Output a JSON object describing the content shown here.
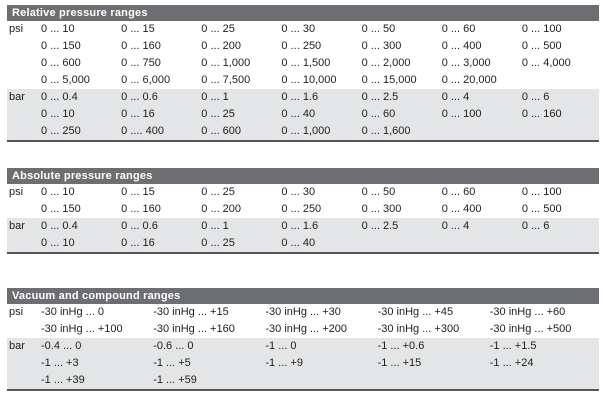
{
  "colors": {
    "header_bg": "#6c6e71",
    "header_text": "#ffffff",
    "shaded_row_bg": "#e4e5e6",
    "text": "#1e1e1e",
    "section_bottom_border": "#55575a"
  },
  "sections": [
    {
      "title": "Relative pressure ranges",
      "column_count": 7,
      "groups": [
        {
          "unit": "psi",
          "shaded": false,
          "rows": [
            [
              "0 ... 10",
              "0 ... 15",
              "0 ... 25",
              "0 ... 30",
              "0 ... 50",
              "0 ... 60",
              "0 ... 100"
            ],
            [
              "0 ... 150",
              "0 ... 160",
              "0 ... 200",
              "0 ... 250",
              "0 ... 300",
              "0 ... 400",
              "0 ... 500"
            ],
            [
              "0 ... 600",
              "0 ... 750",
              "0 ... 1,000",
              "0 ... 1,500",
              "0 ... 2,000",
              "0 ... 3,000",
              "0 ... 4,000"
            ],
            [
              "0 ... 5,000",
              "0 ... 6,000",
              "0 ... 7,500",
              "0 ... 10,000",
              "0 ... 15,000",
              "0 ... 20,000",
              ""
            ]
          ]
        },
        {
          "unit": "bar",
          "shaded": true,
          "rows": [
            [
              "0 ... 0.4",
              "0 ... 0.6",
              "0 ... 1",
              "0 ... 1.6",
              "0 ... 2.5",
              "0 ... 4",
              "0 ... 6"
            ],
            [
              "0 ... 10",
              "0 ... 16",
              "0 ... 25",
              "0 ... 40",
              "0 ... 60",
              "0 ... 100",
              "0 ... 160"
            ],
            [
              "0 ... 250",
              "0 .... 400",
              "0 ... 600",
              "0 ... 1,000",
              "0 ... 1,600",
              "",
              ""
            ]
          ]
        }
      ]
    },
    {
      "title": "Absolute pressure ranges",
      "column_count": 7,
      "groups": [
        {
          "unit": "psi",
          "shaded": false,
          "rows": [
            [
              "0 ... 10",
              "0 ... 15",
              "0 ... 25",
              "0 ... 30",
              "0 ... 50",
              "0 ... 60",
              "0 ... 100"
            ],
            [
              "0 ... 150",
              "0 ... 160",
              "0 ... 200",
              "0 ... 250",
              "0 ... 300",
              "0 ... 400",
              "0 ... 500"
            ]
          ]
        },
        {
          "unit": "bar",
          "shaded": true,
          "rows": [
            [
              "0 ... 0.4",
              "0 ... 0.6",
              "0 ... 1",
              "0 ... 1.6",
              "0 ... 2.5",
              "0 ... 4",
              "0 ... 6"
            ],
            [
              "0 ... 10",
              "0 ... 16",
              "0 ... 25",
              "0 ... 40",
              "",
              "",
              ""
            ]
          ]
        }
      ]
    },
    {
      "title": "Vacuum and compound ranges",
      "column_count": 5,
      "groups": [
        {
          "unit": "psi",
          "shaded": false,
          "rows": [
            [
              "-30 inHg ... 0",
              "-30 inHg ... +15",
              "-30 inHg ... +30",
              "-30 inHg ... +45",
              "-30 inHg ... +60"
            ],
            [
              "-30 inHg ... +100",
              "-30 inHg ... +160",
              "-30 inHg ... +200",
              "-30 inHg ... +300",
              "-30 inHg ... +500"
            ]
          ]
        },
        {
          "unit": "bar",
          "shaded": true,
          "rows": [
            [
              "-0.4 ... 0",
              "-0.6 ... 0",
              "-1 ... 0",
              "-1 ... +0.6",
              "-1 ... +1.5"
            ],
            [
              "-1 ... +3",
              "-1 ... +5",
              "-1 ... +9",
              "-1 ... +15",
              "-1 ... +24"
            ],
            [
              "-1 ... +39",
              "-1 ... +59",
              "",
              "",
              ""
            ]
          ]
        }
      ]
    }
  ]
}
